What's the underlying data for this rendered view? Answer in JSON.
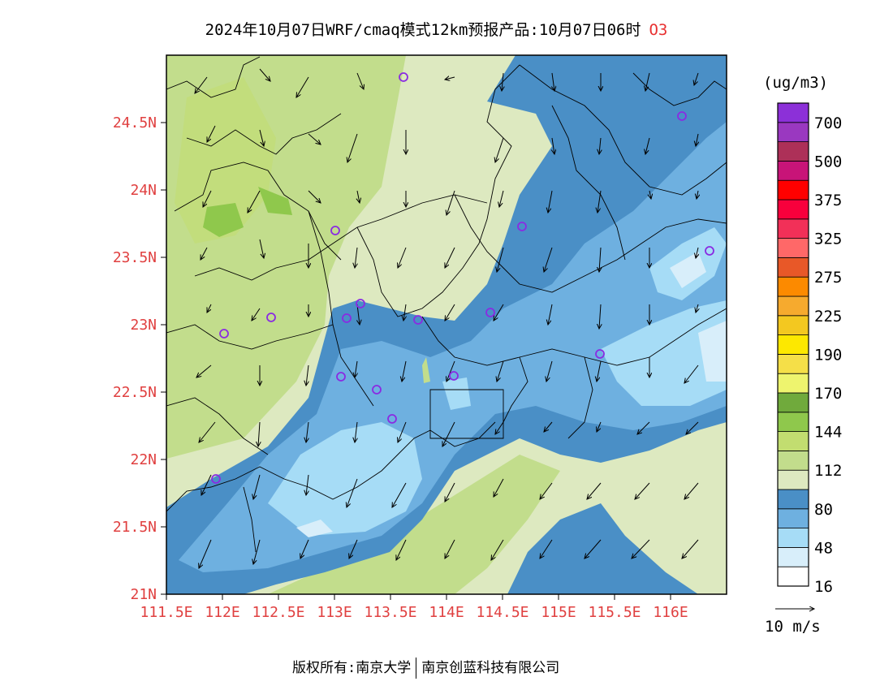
{
  "title": {
    "text": "2024年10月07日WRF/cmaq模式12km预报产品:10月07日06时",
    "species": "O3"
  },
  "axes": {
    "x_ticks": [
      "111.5E",
      "112E",
      "112.5E",
      "113E",
      "113.5E",
      "114E",
      "114.5E",
      "115E",
      "115.5E",
      "116E"
    ],
    "x_values": [
      111.5,
      112,
      112.5,
      113,
      113.5,
      114,
      114.5,
      115,
      115.5,
      116
    ],
    "y_ticks": [
      "21N",
      "21.5N",
      "22N",
      "22.5N",
      "23N",
      "23.5N",
      "24N",
      "24.5N"
    ],
    "y_values": [
      21,
      21.5,
      22,
      22.5,
      23,
      23.5,
      24,
      24.5
    ],
    "lon_range": [
      111.5,
      116.5
    ],
    "lat_range": [
      21,
      25
    ]
  },
  "legend": {
    "unit": "(ug/m3)",
    "labels": [
      "700",
      "500",
      "375",
      "325",
      "275",
      "225",
      "190",
      "170",
      "144",
      "112",
      "80",
      "48",
      "16"
    ],
    "colors": [
      "#ffffff",
      "#d8eefa",
      "#a6dcf6",
      "#6eb0e0",
      "#4a8fc6",
      "#dde9c0",
      "#c2dd8c",
      "#c2dd70",
      "#8fc84c",
      "#70aa3c",
      "#eef46e",
      "#f5df48",
      "#fde800",
      "#f3c820",
      "#f6aa2e",
      "#fc8a00",
      "#e85828",
      "#ff6868",
      "#f23058",
      "#f8003c",
      "#ff0000",
      "#c81478",
      "#ad3058",
      "#9a38c0",
      "#8c30d8"
    ]
  },
  "wind_scale": {
    "label": "10 m/s"
  },
  "colors": {
    "tick_red": "#e04040",
    "station_purple": "#8a2be2"
  },
  "footer": {
    "left": "版权所有:南京大学",
    "right": "南京创蓝科技有限公司"
  }
}
